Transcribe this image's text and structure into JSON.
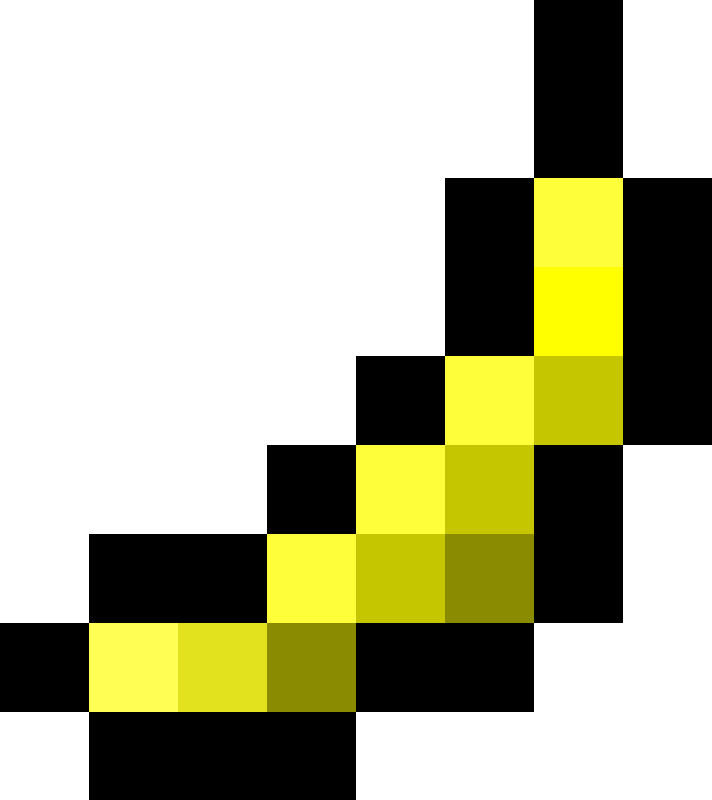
{
  "image": {
    "subject": "banana-pixel-art",
    "icon": "banana-icon",
    "palette": {
      "outline": "#000000",
      "light_yellow": "#fefe55",
      "pale_yellow": "#fefe3a",
      "bright_yellow": "#ffff00",
      "medium_yellow": "#e2e21f",
      "olive": "#c5c500",
      "dark_olive": "#8b8b00",
      "background": "#ffffff"
    },
    "pixels": [
      {
        "col": 6,
        "row": 0,
        "color": "outline"
      },
      {
        "col": 6,
        "row": 1,
        "color": "outline"
      },
      {
        "col": 5,
        "row": 2,
        "color": "outline"
      },
      {
        "col": 6,
        "row": 2,
        "color": "pale_yellow"
      },
      {
        "col": 7,
        "row": 2,
        "color": "outline"
      },
      {
        "col": 5,
        "row": 3,
        "color": "outline"
      },
      {
        "col": 6,
        "row": 3,
        "color": "bright_yellow"
      },
      {
        "col": 7,
        "row": 3,
        "color": "outline"
      },
      {
        "col": 4,
        "row": 4,
        "color": "outline"
      },
      {
        "col": 5,
        "row": 4,
        "color": "pale_yellow"
      },
      {
        "col": 6,
        "row": 4,
        "color": "olive"
      },
      {
        "col": 7,
        "row": 4,
        "color": "outline"
      },
      {
        "col": 3,
        "row": 5,
        "color": "outline"
      },
      {
        "col": 4,
        "row": 5,
        "color": "pale_yellow"
      },
      {
        "col": 5,
        "row": 5,
        "color": "olive"
      },
      {
        "col": 6,
        "row": 5,
        "color": "outline"
      },
      {
        "col": 1,
        "row": 6,
        "color": "outline"
      },
      {
        "col": 2,
        "row": 6,
        "color": "outline"
      },
      {
        "col": 3,
        "row": 6,
        "color": "pale_yellow"
      },
      {
        "col": 4,
        "row": 6,
        "color": "olive"
      },
      {
        "col": 5,
        "row": 6,
        "color": "dark_olive"
      },
      {
        "col": 6,
        "row": 6,
        "color": "outline"
      },
      {
        "col": 0,
        "row": 7,
        "color": "outline"
      },
      {
        "col": 1,
        "row": 7,
        "color": "light_yellow"
      },
      {
        "col": 2,
        "row": 7,
        "color": "medium_yellow"
      },
      {
        "col": 3,
        "row": 7,
        "color": "dark_olive"
      },
      {
        "col": 4,
        "row": 7,
        "color": "outline"
      },
      {
        "col": 5,
        "row": 7,
        "color": "outline"
      },
      {
        "col": 1,
        "row": 8,
        "color": "outline"
      },
      {
        "col": 2,
        "row": 8,
        "color": "outline"
      },
      {
        "col": 3,
        "row": 8,
        "color": "outline"
      }
    ]
  }
}
